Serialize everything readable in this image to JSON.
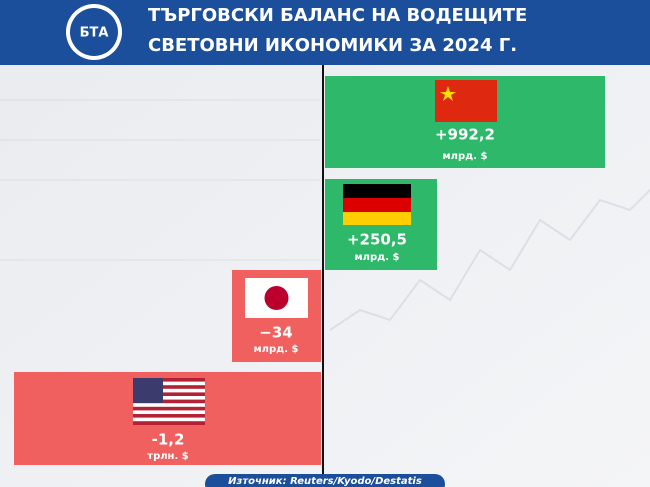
{
  "header": {
    "logo": "БТА",
    "title_lines": [
      "ТЪРГОВСКИ БАЛАНС НА ВОДЕЩИТЕ",
      "СВЕТОВНИ ИКОНОМИКИ ЗА 2024 Г."
    ]
  },
  "items": [
    {
      "country": "China",
      "value": "+992,2",
      "unit": "млрд. $"
    },
    {
      "country": "Germany",
      "value": "+250,5",
      "unit": "млрд. $"
    },
    {
      "country": "Japan",
      "value": "−34",
      "unit": "млрд. $"
    },
    {
      "country": "USA",
      "value": "-1,2",
      "unit": "трлн. $"
    }
  ],
  "source": "Източник: Reuters/Kyodo/Destatis"
}
